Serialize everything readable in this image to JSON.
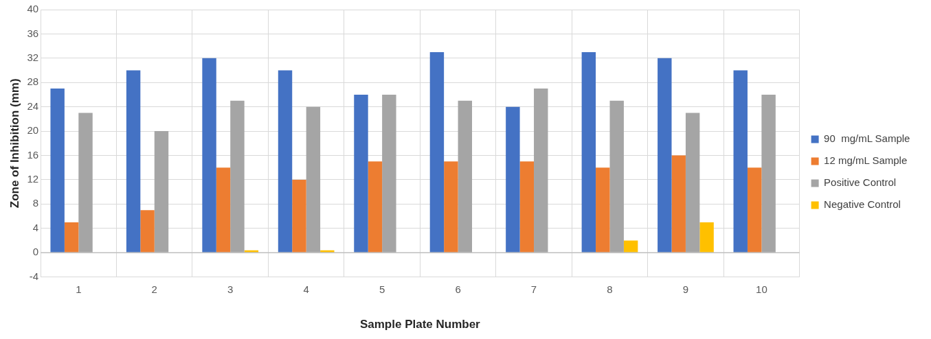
{
  "chart_data": {
    "type": "bar",
    "xlabel": "Sample Plate Number",
    "ylabel": "Zone of Inhibition (mm)",
    "categories": [
      "1",
      "2",
      "3",
      "4",
      "5",
      "6",
      "7",
      "8",
      "9",
      "10"
    ],
    "series": [
      {
        "name": "90  mg/mL Sample",
        "color": "#4472c4",
        "values": [
          27,
          30,
          32,
          30,
          26,
          33,
          24,
          33,
          32,
          30
        ]
      },
      {
        "name": "12 mg/mL Sample",
        "color": "#ed7d31",
        "values": [
          5,
          7,
          14,
          12,
          15,
          15,
          15,
          14,
          16,
          14
        ]
      },
      {
        "name": "Positive Control",
        "color": "#a5a5a5",
        "values": [
          23,
          20,
          25,
          24,
          26,
          25,
          27,
          25,
          23,
          26
        ]
      },
      {
        "name": "Negative Control",
        "color": "#ffc000",
        "values": [
          0,
          0,
          0.4,
          0.4,
          0,
          0,
          0,
          2,
          5,
          0
        ]
      }
    ],
    "ylim": [
      -4,
      40
    ],
    "yticks": [
      -4,
      0,
      4,
      8,
      12,
      16,
      20,
      24,
      28,
      32,
      36,
      40
    ],
    "grid": true,
    "legend": "right"
  }
}
